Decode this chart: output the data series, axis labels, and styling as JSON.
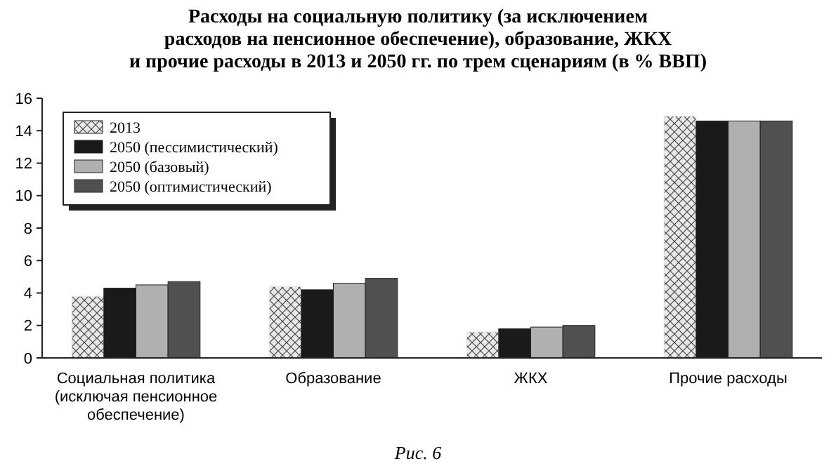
{
  "chart_data": {
    "type": "bar",
    "title": "Расходы на социальную политику (за исключением\nрасходов на пенсионное обеспечение), образование, ЖКХ\nи прочие расходы в 2013 и 2050 гг. по трем сценариям (в % ВВП)",
    "categories": [
      "Социальная политика\n(исключая пенсионное\nобеспечение)",
      "Образование",
      "ЖКХ",
      "Прочие расходы"
    ],
    "series": [
      {
        "name": "2013",
        "color": "#e8e8e8",
        "values": [
          3.8,
          4.4,
          1.6,
          14.9
        ]
      },
      {
        "name": "2050 (пессимистический)",
        "color": "#1a1a1a",
        "values": [
          4.3,
          4.2,
          1.8,
          14.6
        ]
      },
      {
        "name": "2050 (базовый)",
        "color": "#b0b0b0",
        "values": [
          4.5,
          4.6,
          1.9,
          14.6
        ]
      },
      {
        "name": "2050 (оптимистический)",
        "color": "#505050",
        "values": [
          4.7,
          4.9,
          2.0,
          14.6
        ]
      }
    ],
    "ylim": [
      0,
      16
    ],
    "yticks": [
      0,
      2,
      4,
      6,
      8,
      10,
      12,
      14,
      16
    ],
    "grid": false,
    "legend": "top left",
    "annotations": [
      "Рис. 6"
    ]
  }
}
